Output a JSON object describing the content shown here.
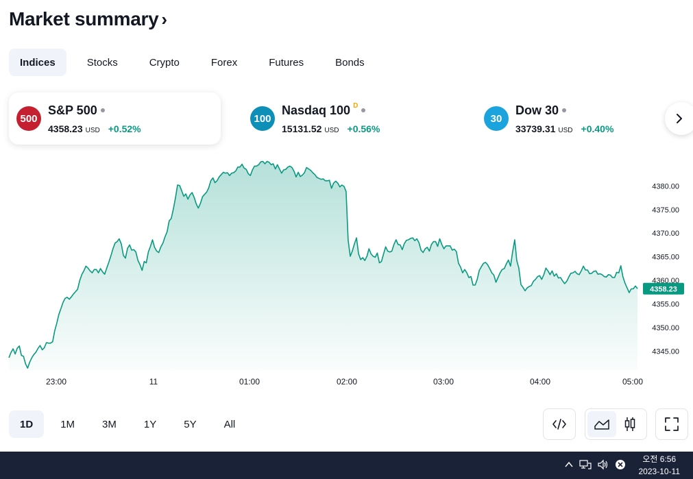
{
  "header": {
    "title": "Market summary",
    "chevron": "›"
  },
  "tabs": [
    {
      "label": "Indices",
      "active": true
    },
    {
      "label": "Stocks",
      "active": false
    },
    {
      "label": "Crypto",
      "active": false
    },
    {
      "label": "Forex",
      "active": false
    },
    {
      "label": "Futures",
      "active": false
    },
    {
      "label": "Bonds",
      "active": false
    }
  ],
  "cards": [
    {
      "badge": "500",
      "badge_color": "#c4202f",
      "name": "S&P 500",
      "flag": "",
      "price": "4358.23",
      "currency": "USD",
      "change": "+0.52%"
    },
    {
      "badge": "100",
      "badge_color": "#0e8fb8",
      "name": "Nasdaq 100",
      "flag": "D",
      "price": "15131.52",
      "currency": "USD",
      "change": "+0.56%"
    },
    {
      "badge": "30",
      "badge_color": "#1aa3dc",
      "name": "Dow 30",
      "flag": "",
      "price": "33739.31",
      "currency": "USD",
      "change": "+0.40%"
    }
  ],
  "chart_data": {
    "type": "area",
    "series": [
      {
        "values": [
          4343.6,
          4344.7,
          4345.5,
          4344.4,
          4345.6,
          4346.1,
          4344.1,
          4343.9,
          4342.3,
          4341.4,
          4342.7,
          4343.6,
          4344.3,
          4344.8,
          4345.6,
          4346.2,
          4345.3,
          4345.7,
          4346.8,
          4346.7,
          4346.7,
          4347.0,
          4349.3,
          4350.9,
          4352.8,
          4354.0,
          4355.3,
          4356.2,
          4356.4,
          4356.0,
          4356.5,
          4357.1,
          4357.6,
          4358.1,
          4359.9,
          4361.2,
          4362.0,
          4363.0,
          4362.6,
          4362.0,
          4361.6,
          4362.3,
          4362.3,
          4361.6,
          4362.5,
          4361.8,
          4361.3,
          4362.6,
          4363.8,
          4365.2,
          4366.7,
          4367.9,
          4368.2,
          4368.8,
          4367.7,
          4365.3,
          4364.7,
          4366.8,
          4367.5,
          4366.4,
          4366.5,
          4366.0,
          4364.2,
          4363.3,
          4362.1,
          4364.0,
          4363.7,
          4366.0,
          4367.2,
          4368.6,
          4367.0,
          4366.2,
          4365.9,
          4367.1,
          4367.9,
          4369.2,
          4370.3,
          4372.6,
          4373.1,
          4375.1,
          4377.4,
          4380.2,
          4380.1,
          4379.0,
          4377.8,
          4378.3,
          4377.2,
          4378.1,
          4378.6,
          4377.6,
          4376.2,
          4375.3,
          4376.3,
          4377.7,
          4378.2,
          4378.7,
          4379.6,
          4381.1,
          4381.7,
          4380.7,
          4381.1,
          4381.9,
          4382.4,
          4382.9,
          4382.7,
          4382.8,
          4382.2,
          4382.7,
          4382.8,
          4383.2,
          4384.0,
          4384.0,
          4384.6,
          4383.8,
          4383.5,
          4382.6,
          4382.2,
          4383.4,
          4384.2,
          4384.2,
          4384.5,
          4385.1,
          4385.2,
          4384.7,
          4385.2,
          4385.0,
          4384.5,
          4384.7,
          4383.6,
          4384.5,
          4383.6,
          4382.7,
          4383.4,
          4383.5,
          4384.0,
          4384.2,
          4383.9,
          4383.1,
          4381.9,
          4382.9,
          4382.0,
          4382.3,
          4382.8,
          4383.9,
          4383.6,
          4383.3,
          4382.8,
          4382.4,
          4381.8,
          4381.6,
          4381.4,
          4381.5,
          4381.1,
          4381.1,
          4381.2,
          4379.5,
          4380.6,
          4381.0,
          4380.6,
          4379.8,
          4380.2,
          4379.9,
          4378.8,
          4368.5,
          4365.1,
          4366.2,
          4367.7,
          4369.0,
          4365.6,
          4364.4,
          4364.8,
          4364.2,
          4365.1,
          4366.7,
          4365.6,
          4365.1,
          4364.9,
          4365.8,
          4363.7,
          4364.0,
          4365.6,
          4367.1,
          4366.2,
          4366.0,
          4366.2,
          4367.6,
          4368.6,
          4367.6,
          4367.5,
          4366.5,
          4367.8,
          4368.5,
          4368.6,
          4368.9,
          4369.0,
          4368.4,
          4368.8,
          4368.0,
          4366.4,
          4365.9,
          4366.7,
          4367.0,
          4366.2,
          4367.6,
          4368.2,
          4368.2,
          4367.2,
          4368.8,
          4367.6,
          4366.7,
          4367.3,
          4367.3,
          4367.3,
          4366.4,
          4366.6,
          4366.1,
          4363.6,
          4362.8,
          4361.6,
          4362.3,
          4361.6,
          4360.6,
          4360.8,
          4359.0,
          4359.0,
          4360.2,
          4362.1,
          4362.9,
          4363.6,
          4363.8,
          4363.3,
          4362.5,
          4361.6,
          4361.1,
          4359.6,
          4360.6,
          4361.6,
          4362.3,
          4362.5,
          4363.5,
          4364.3,
          4363.0,
          4366.0,
          4368.6,
          4364.2,
          4362.6,
          4359.1,
          4358.5,
          4357.8,
          4358.4,
          4358.7,
          4358.9,
          4359.8,
          4360.2,
          4360.8,
          4361.0,
          4360.2,
          4361.2,
          4362.6,
          4362.0,
          4361.2,
          4362.0,
          4360.9,
          4361.4,
          4360.5,
          4360.6,
          4359.9,
          4359.3,
          4359.8,
          4360.7,
          4361.5,
          4361.6,
          4361.9,
          4361.4,
          4361.2,
          4362.0,
          4363.0,
          4362.2,
          4362.2,
          4361.4,
          4361.5,
          4361.9,
          4362.0,
          4361.3,
          4361.4,
          4361.2,
          4360.8,
          4360.7,
          4361.2,
          4361.1,
          4360.6,
          4360.6,
          4361.7,
          4361.6,
          4363.1,
          4360.8,
          4359.4,
          4358.4,
          4357.4,
          4358.2,
          4358.2,
          4358.8,
          4358.23
        ]
      }
    ],
    "ylim": [
      4341,
      4386
    ],
    "yticks": [
      "4380.00",
      "4375.00",
      "4370.00",
      "4365.00",
      "4360.00",
      "4355.00",
      "4350.00",
      "4345.00"
    ],
    "xticks": [
      "23:00",
      "11",
      "01:00",
      "02:00",
      "03:00",
      "04:00",
      "05:00"
    ],
    "last_price": "4358.23",
    "color": "#089981"
  },
  "ranges": [
    {
      "label": "1D",
      "active": true
    },
    {
      "label": "1M",
      "active": false
    },
    {
      "label": "3M",
      "active": false
    },
    {
      "label": "1Y",
      "active": false
    },
    {
      "label": "5Y",
      "active": false
    },
    {
      "label": "All",
      "active": false
    }
  ],
  "taskbar": {
    "time": "오전 6:56",
    "date": "2023-10-11"
  }
}
